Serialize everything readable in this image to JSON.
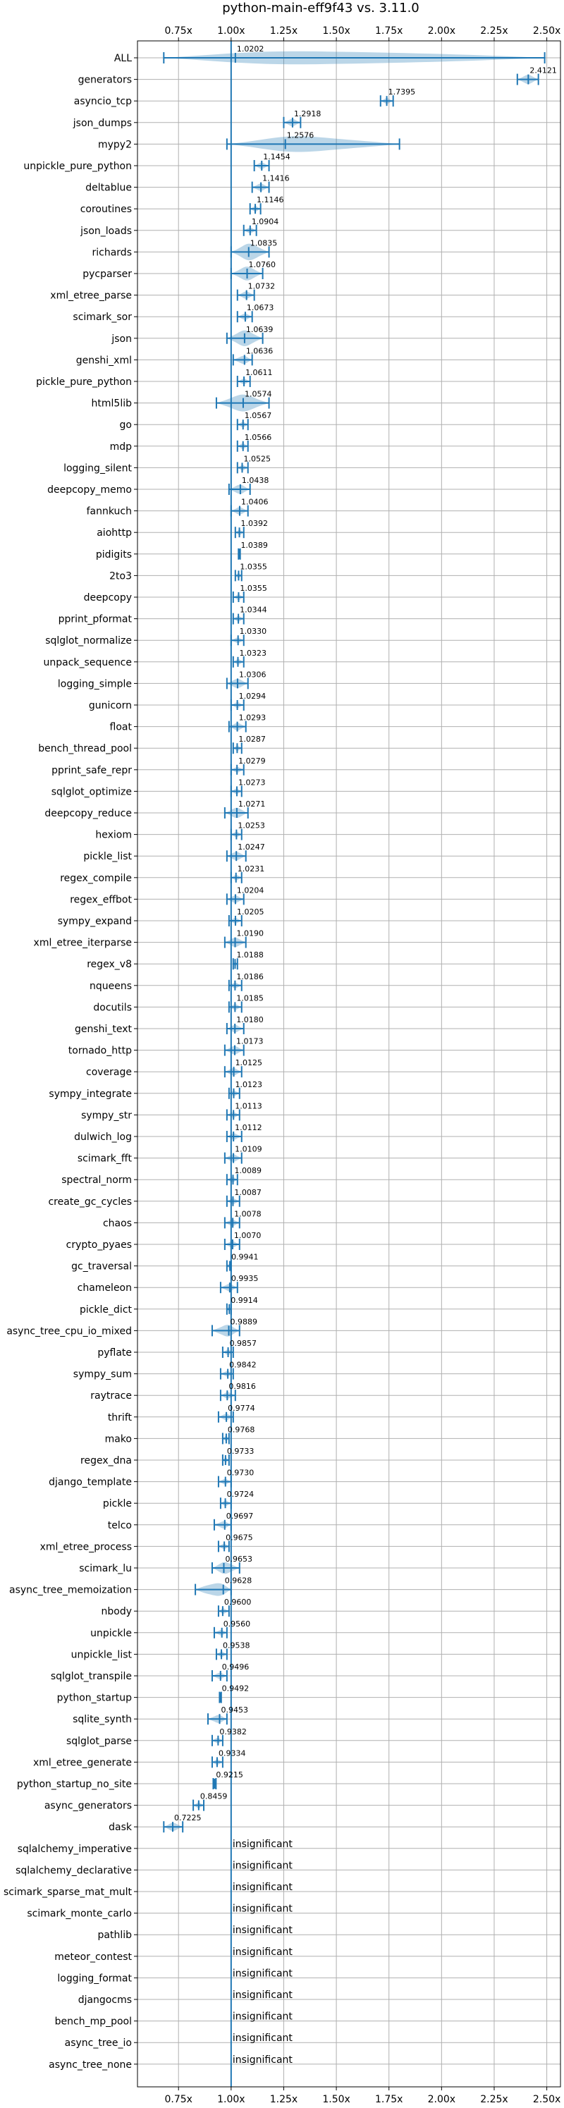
{
  "chart_data": {
    "type": "violin",
    "title": "python-main-eff9f43 vs. 3.11.0",
    "x_ticks": [
      "0.75x",
      "1.00x",
      "1.25x",
      "1.50x",
      "1.75x",
      "2.00x",
      "2.25x",
      "2.50x"
    ],
    "x_tick_values": [
      0.75,
      1.0,
      1.25,
      1.5,
      1.75,
      2.0,
      2.25,
      2.5
    ],
    "xlim": [
      0.555,
      2.565
    ],
    "baseline": 1.0,
    "grid": true,
    "insignificant_text": "insignificant",
    "benchmarks": [
      {
        "name": "ALL",
        "value": 1.0202,
        "label": "1.0202",
        "lo": 0.68,
        "hi": 2.49
      },
      {
        "name": "generators",
        "value": 2.4121,
        "label": "2.4121",
        "lo": 2.36,
        "hi": 2.46
      },
      {
        "name": "asyncio_tcp",
        "value": 1.7395,
        "label": "1.7395",
        "lo": 1.71,
        "hi": 1.77
      },
      {
        "name": "json_dumps",
        "value": 1.2918,
        "label": "1.2918",
        "lo": 1.25,
        "hi": 1.33
      },
      {
        "name": "mypy2",
        "value": 1.2576,
        "label": "1.2576",
        "lo": 0.98,
        "hi": 1.8
      },
      {
        "name": "unpickle_pure_python",
        "value": 1.1454,
        "label": "1.1454",
        "lo": 1.11,
        "hi": 1.18
      },
      {
        "name": "deltablue",
        "value": 1.1416,
        "label": "1.1416",
        "lo": 1.1,
        "hi": 1.18
      },
      {
        "name": "coroutines",
        "value": 1.1146,
        "label": "1.1146",
        "lo": 1.09,
        "hi": 1.14
      },
      {
        "name": "json_loads",
        "value": 1.0904,
        "label": "1.0904",
        "lo": 1.06,
        "hi": 1.12
      },
      {
        "name": "richards",
        "value": 1.0835,
        "label": "1.0835",
        "lo": 1.0,
        "hi": 1.18
      },
      {
        "name": "pycparser",
        "value": 1.076,
        "label": "1.0760",
        "lo": 1.0,
        "hi": 1.15
      },
      {
        "name": "xml_etree_parse",
        "value": 1.0732,
        "label": "1.0732",
        "lo": 1.03,
        "hi": 1.11
      },
      {
        "name": "scimark_sor",
        "value": 1.0673,
        "label": "1.0673",
        "lo": 1.03,
        "hi": 1.1
      },
      {
        "name": "json",
        "value": 1.0639,
        "label": "1.0639",
        "lo": 0.98,
        "hi": 1.15
      },
      {
        "name": "genshi_xml",
        "value": 1.0636,
        "label": "1.0636",
        "lo": 1.01,
        "hi": 1.1
      },
      {
        "name": "pickle_pure_python",
        "value": 1.0611,
        "label": "1.0611",
        "lo": 1.03,
        "hi": 1.09
      },
      {
        "name": "html5lib",
        "value": 1.0574,
        "label": "1.0574",
        "lo": 0.93,
        "hi": 1.18
      },
      {
        "name": "go",
        "value": 1.0567,
        "label": "1.0567",
        "lo": 1.03,
        "hi": 1.08
      },
      {
        "name": "mdp",
        "value": 1.0566,
        "label": "1.0566",
        "lo": 1.03,
        "hi": 1.08
      },
      {
        "name": "logging_silent",
        "value": 1.0525,
        "label": "1.0525",
        "lo": 1.03,
        "hi": 1.08
      },
      {
        "name": "deepcopy_memo",
        "value": 1.0438,
        "label": "1.0438",
        "lo": 0.99,
        "hi": 1.09
      },
      {
        "name": "fannkuch",
        "value": 1.0406,
        "label": "1.0406",
        "lo": 1.0,
        "hi": 1.08
      },
      {
        "name": "aiohttp",
        "value": 1.0392,
        "label": "1.0392",
        "lo": 1.02,
        "hi": 1.06
      },
      {
        "name": "pidigits",
        "value": 1.0389,
        "label": "1.0389",
        "lo": 1.035,
        "hi": 1.043
      },
      {
        "name": "2to3",
        "value": 1.0355,
        "label": "1.0355",
        "lo": 1.02,
        "hi": 1.05
      },
      {
        "name": "deepcopy",
        "value": 1.0355,
        "label": "1.0355",
        "lo": 1.01,
        "hi": 1.06
      },
      {
        "name": "pprint_pformat",
        "value": 1.0344,
        "label": "1.0344",
        "lo": 1.01,
        "hi": 1.06
      },
      {
        "name": "sqlglot_normalize",
        "value": 1.033,
        "label": "1.0330",
        "lo": 1.0,
        "hi": 1.06
      },
      {
        "name": "unpack_sequence",
        "value": 1.0323,
        "label": "1.0323",
        "lo": 1.01,
        "hi": 1.06
      },
      {
        "name": "logging_simple",
        "value": 1.0306,
        "label": "1.0306",
        "lo": 0.98,
        "hi": 1.08
      },
      {
        "name": "gunicorn",
        "value": 1.0294,
        "label": "1.0294",
        "lo": 1.0,
        "hi": 1.06
      },
      {
        "name": "float",
        "value": 1.0293,
        "label": "1.0293",
        "lo": 0.99,
        "hi": 1.07
      },
      {
        "name": "bench_thread_pool",
        "value": 1.0287,
        "label": "1.0287",
        "lo": 1.01,
        "hi": 1.05
      },
      {
        "name": "pprint_safe_repr",
        "value": 1.0279,
        "label": "1.0279",
        "lo": 1.0,
        "hi": 1.06
      },
      {
        "name": "sqlglot_optimize",
        "value": 1.0273,
        "label": "1.0273",
        "lo": 1.0,
        "hi": 1.05
      },
      {
        "name": "deepcopy_reduce",
        "value": 1.0271,
        "label": "1.0271",
        "lo": 0.97,
        "hi": 1.08
      },
      {
        "name": "hexiom",
        "value": 1.0253,
        "label": "1.0253",
        "lo": 1.0,
        "hi": 1.05
      },
      {
        "name": "pickle_list",
        "value": 1.0247,
        "label": "1.0247",
        "lo": 0.98,
        "hi": 1.07
      },
      {
        "name": "regex_compile",
        "value": 1.0231,
        "label": "1.0231",
        "lo": 1.0,
        "hi": 1.05
      },
      {
        "name": "regex_effbot",
        "value": 1.0204,
        "label": "1.0204",
        "lo": 0.98,
        "hi": 1.06
      },
      {
        "name": "sympy_expand",
        "value": 1.0205,
        "label": "1.0205",
        "lo": 0.99,
        "hi": 1.05
      },
      {
        "name": "xml_etree_iterparse",
        "value": 1.019,
        "label": "1.0190",
        "lo": 0.97,
        "hi": 1.07
      },
      {
        "name": "regex_v8",
        "value": 1.0188,
        "label": "1.0188",
        "lo": 1.01,
        "hi": 1.03
      },
      {
        "name": "nqueens",
        "value": 1.0186,
        "label": "1.0186",
        "lo": 0.99,
        "hi": 1.05
      },
      {
        "name": "docutils",
        "value": 1.0185,
        "label": "1.0185",
        "lo": 0.99,
        "hi": 1.05
      },
      {
        "name": "genshi_text",
        "value": 1.018,
        "label": "1.0180",
        "lo": 0.98,
        "hi": 1.06
      },
      {
        "name": "tornado_http",
        "value": 1.0173,
        "label": "1.0173",
        "lo": 0.97,
        "hi": 1.06
      },
      {
        "name": "coverage",
        "value": 1.0125,
        "label": "1.0125",
        "lo": 0.97,
        "hi": 1.05
      },
      {
        "name": "sympy_integrate",
        "value": 1.0123,
        "label": "1.0123",
        "lo": 0.99,
        "hi": 1.04
      },
      {
        "name": "sympy_str",
        "value": 1.0113,
        "label": "1.0113",
        "lo": 0.98,
        "hi": 1.04
      },
      {
        "name": "dulwich_log",
        "value": 1.0112,
        "label": "1.0112",
        "lo": 0.98,
        "hi": 1.05
      },
      {
        "name": "scimark_fft",
        "value": 1.0109,
        "label": "1.0109",
        "lo": 0.97,
        "hi": 1.05
      },
      {
        "name": "spectral_norm",
        "value": 1.0089,
        "label": "1.0089",
        "lo": 0.98,
        "hi": 1.03
      },
      {
        "name": "create_gc_cycles",
        "value": 1.0087,
        "label": "1.0087",
        "lo": 0.98,
        "hi": 1.04
      },
      {
        "name": "chaos",
        "value": 1.0078,
        "label": "1.0078",
        "lo": 0.97,
        "hi": 1.04
      },
      {
        "name": "crypto_pyaes",
        "value": 1.007,
        "label": "1.0070",
        "lo": 0.97,
        "hi": 1.04
      },
      {
        "name": "gc_traversal",
        "value": 0.9941,
        "label": "0.9941",
        "lo": 0.98,
        "hi": 1.0
      },
      {
        "name": "chameleon",
        "value": 0.9935,
        "label": "0.9935",
        "lo": 0.95,
        "hi": 1.03
      },
      {
        "name": "pickle_dict",
        "value": 0.9914,
        "label": "0.9914",
        "lo": 0.98,
        "hi": 1.0
      },
      {
        "name": "async_tree_cpu_io_mixed",
        "value": 0.9889,
        "label": "0.9889",
        "lo": 0.91,
        "hi": 1.04
      },
      {
        "name": "pyflate",
        "value": 0.9857,
        "label": "0.9857",
        "lo": 0.96,
        "hi": 1.01
      },
      {
        "name": "sympy_sum",
        "value": 0.9842,
        "label": "0.9842",
        "lo": 0.95,
        "hi": 1.01
      },
      {
        "name": "raytrace",
        "value": 0.9816,
        "label": "0.9816",
        "lo": 0.95,
        "hi": 1.02
      },
      {
        "name": "thrift",
        "value": 0.9774,
        "label": "0.9774",
        "lo": 0.94,
        "hi": 1.01
      },
      {
        "name": "mako",
        "value": 0.9768,
        "label": "0.9768",
        "lo": 0.96,
        "hi": 0.99
      },
      {
        "name": "regex_dna",
        "value": 0.9733,
        "label": "0.9733",
        "lo": 0.96,
        "hi": 0.99
      },
      {
        "name": "django_template",
        "value": 0.973,
        "label": "0.9730",
        "lo": 0.94,
        "hi": 1.0
      },
      {
        "name": "pickle",
        "value": 0.9724,
        "label": "0.9724",
        "lo": 0.95,
        "hi": 1.0
      },
      {
        "name": "telco",
        "value": 0.9697,
        "label": "0.9697",
        "lo": 0.92,
        "hi": 1.0
      },
      {
        "name": "xml_etree_process",
        "value": 0.9675,
        "label": "0.9675",
        "lo": 0.94,
        "hi": 0.99
      },
      {
        "name": "scimark_lu",
        "value": 0.9653,
        "label": "0.9653",
        "lo": 0.91,
        "hi": 1.04
      },
      {
        "name": "async_tree_memoization",
        "value": 0.9628,
        "label": "0.9628",
        "lo": 0.83,
        "hi": 1.0
      },
      {
        "name": "nbody",
        "value": 0.96,
        "label": "0.9600",
        "lo": 0.94,
        "hi": 0.99
      },
      {
        "name": "unpickle",
        "value": 0.956,
        "label": "0.9560",
        "lo": 0.92,
        "hi": 0.98
      },
      {
        "name": "unpickle_list",
        "value": 0.9538,
        "label": "0.9538",
        "lo": 0.93,
        "hi": 0.98
      },
      {
        "name": "sqlglot_transpile",
        "value": 0.9496,
        "label": "0.9496",
        "lo": 0.91,
        "hi": 0.98
      },
      {
        "name": "python_startup",
        "value": 0.9492,
        "label": "0.9492",
        "lo": 0.945,
        "hi": 0.953
      },
      {
        "name": "sqlite_synth",
        "value": 0.9453,
        "label": "0.9453",
        "lo": 0.89,
        "hi": 0.98
      },
      {
        "name": "sqlglot_parse",
        "value": 0.9382,
        "label": "0.9382",
        "lo": 0.91,
        "hi": 0.96
      },
      {
        "name": "xml_etree_generate",
        "value": 0.9334,
        "label": "0.9334",
        "lo": 0.91,
        "hi": 0.96
      },
      {
        "name": "python_startup_no_site",
        "value": 0.9215,
        "label": "0.9215",
        "lo": 0.915,
        "hi": 0.928
      },
      {
        "name": "async_generators",
        "value": 0.8459,
        "label": "0.8459",
        "lo": 0.82,
        "hi": 0.87
      },
      {
        "name": "dask",
        "value": 0.7225,
        "label": "0.7225",
        "lo": 0.68,
        "hi": 0.77
      },
      {
        "name": "sqlalchemy_imperative",
        "insignificant": true
      },
      {
        "name": "sqlalchemy_declarative",
        "insignificant": true
      },
      {
        "name": "scimark_sparse_mat_mult",
        "insignificant": true
      },
      {
        "name": "scimark_monte_carlo",
        "insignificant": true
      },
      {
        "name": "pathlib",
        "insignificant": true
      },
      {
        "name": "meteor_contest",
        "insignificant": true
      },
      {
        "name": "logging_format",
        "insignificant": true
      },
      {
        "name": "djangocms",
        "insignificant": true
      },
      {
        "name": "bench_mp_pool",
        "insignificant": true
      },
      {
        "name": "async_tree_io",
        "insignificant": true
      },
      {
        "name": "async_tree_none",
        "insignificant": true
      }
    ]
  }
}
